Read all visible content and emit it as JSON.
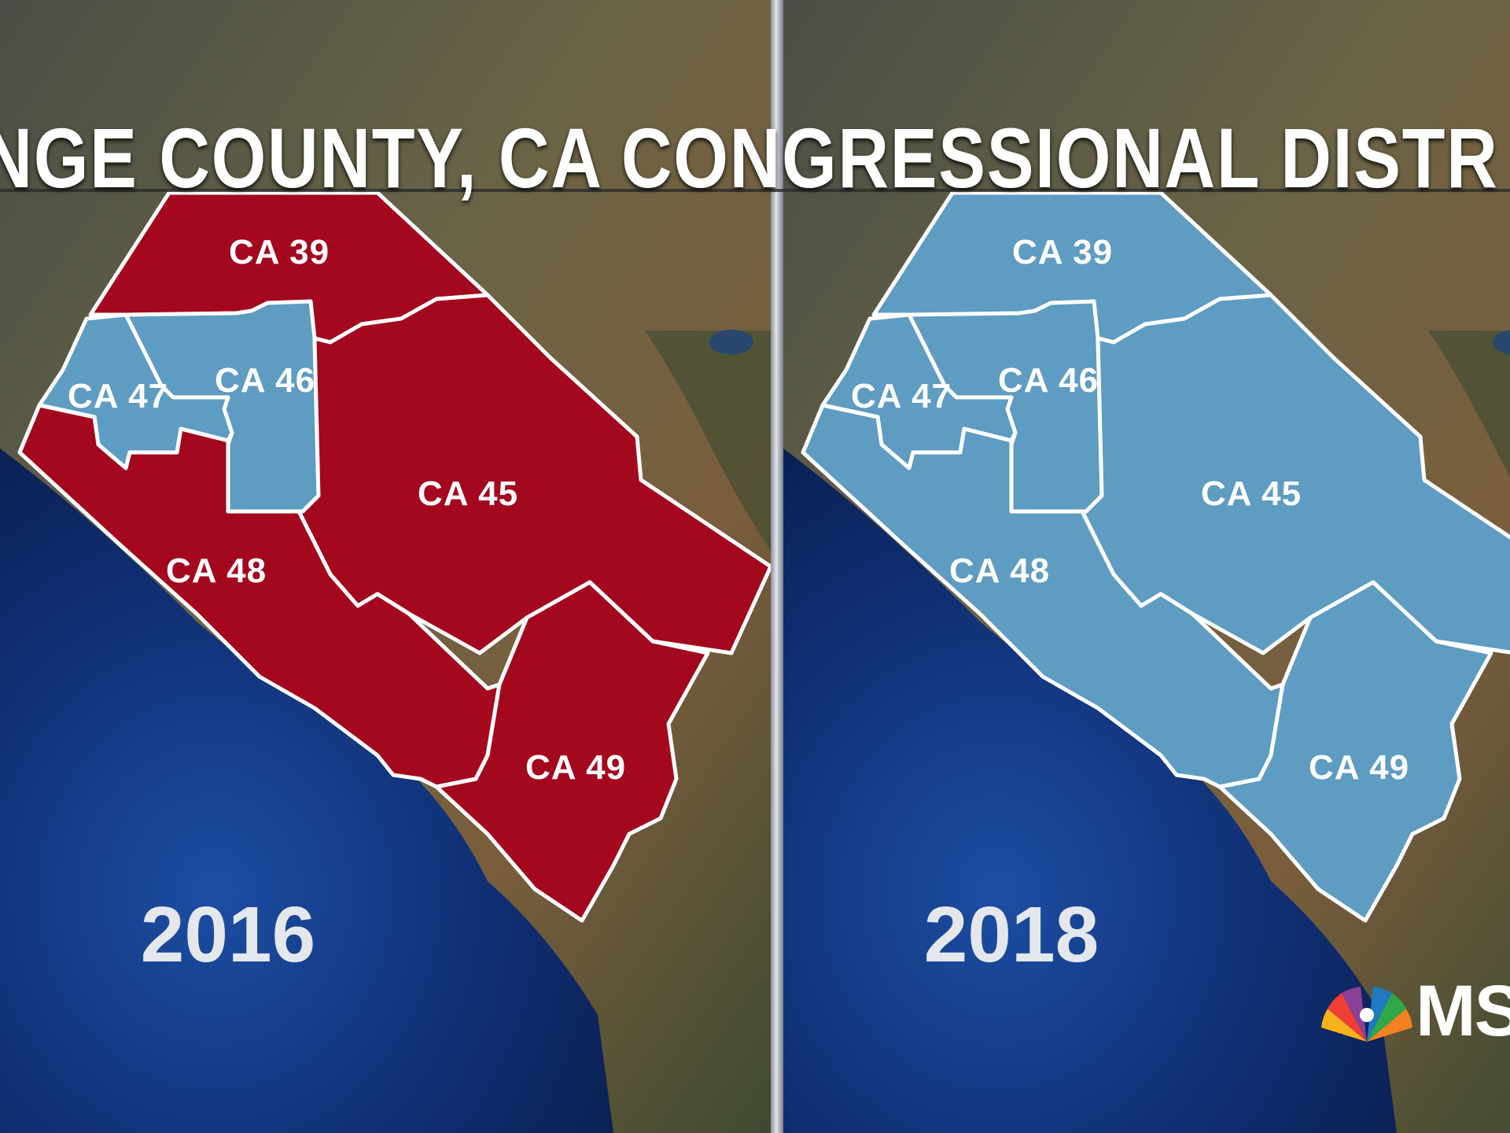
{
  "title": "ANGE COUNTY, CA CONGRESSIONAL DISTR",
  "network_logo_text": "MS",
  "colors": {
    "republican": "#a3081e",
    "democrat": "#5e9cc2",
    "ocean": "#0e2a66",
    "land": "#5e5a3f",
    "border": "#ffffff"
  },
  "maps": [
    {
      "year": "2016",
      "districts": [
        {
          "name": "CA 39",
          "party": "republican"
        },
        {
          "name": "CA 46",
          "party": "democrat"
        },
        {
          "name": "CA 47",
          "party": "democrat"
        },
        {
          "name": "CA 45",
          "party": "republican"
        },
        {
          "name": "CA 48",
          "party": "republican"
        },
        {
          "name": "CA 49",
          "party": "republican"
        }
      ]
    },
    {
      "year": "2018",
      "districts": [
        {
          "name": "CA 39",
          "party": "democrat"
        },
        {
          "name": "CA 46",
          "party": "democrat"
        },
        {
          "name": "CA 47",
          "party": "democrat"
        },
        {
          "name": "CA 45",
          "party": "democrat"
        },
        {
          "name": "CA 48",
          "party": "democrat"
        },
        {
          "name": "CA 49",
          "party": "democrat"
        }
      ]
    }
  ]
}
